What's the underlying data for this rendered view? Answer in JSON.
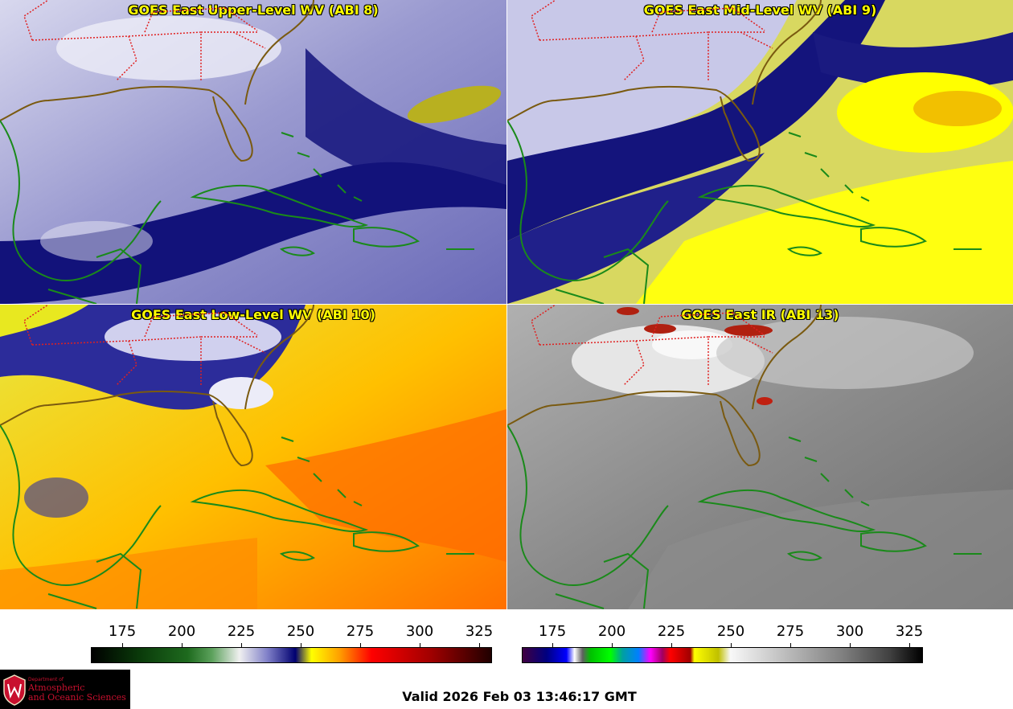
{
  "panels": [
    {
      "id": "tl",
      "title": "GOES East Upper-Level WV (ABI 8)"
    },
    {
      "id": "tr",
      "title": "GOES East Mid-Level WV (ABI 9)"
    },
    {
      "id": "bl",
      "title": "GOES East Low-Level WV (ABI 10)"
    },
    {
      "id": "br",
      "title": "GOES East IR (ABI 13)"
    }
  ],
  "colorbars": {
    "wv": {
      "ticks": [
        "175",
        "200",
        "225",
        "250",
        "275",
        "300",
        "325"
      ]
    },
    "ir": {
      "ticks": [
        "175",
        "200",
        "225",
        "250",
        "275",
        "300",
        "325"
      ]
    }
  },
  "colors": {
    "coastline": "#1a8a1a",
    "state_borders": "#e02020",
    "title_text": "#ffff00"
  },
  "valid_time": "Valid 2026 Feb 03 13:46:17 GMT",
  "logo": {
    "line1": "Department of",
    "line2": "Atmospheric",
    "line3": "and Oceanic Sciences"
  }
}
